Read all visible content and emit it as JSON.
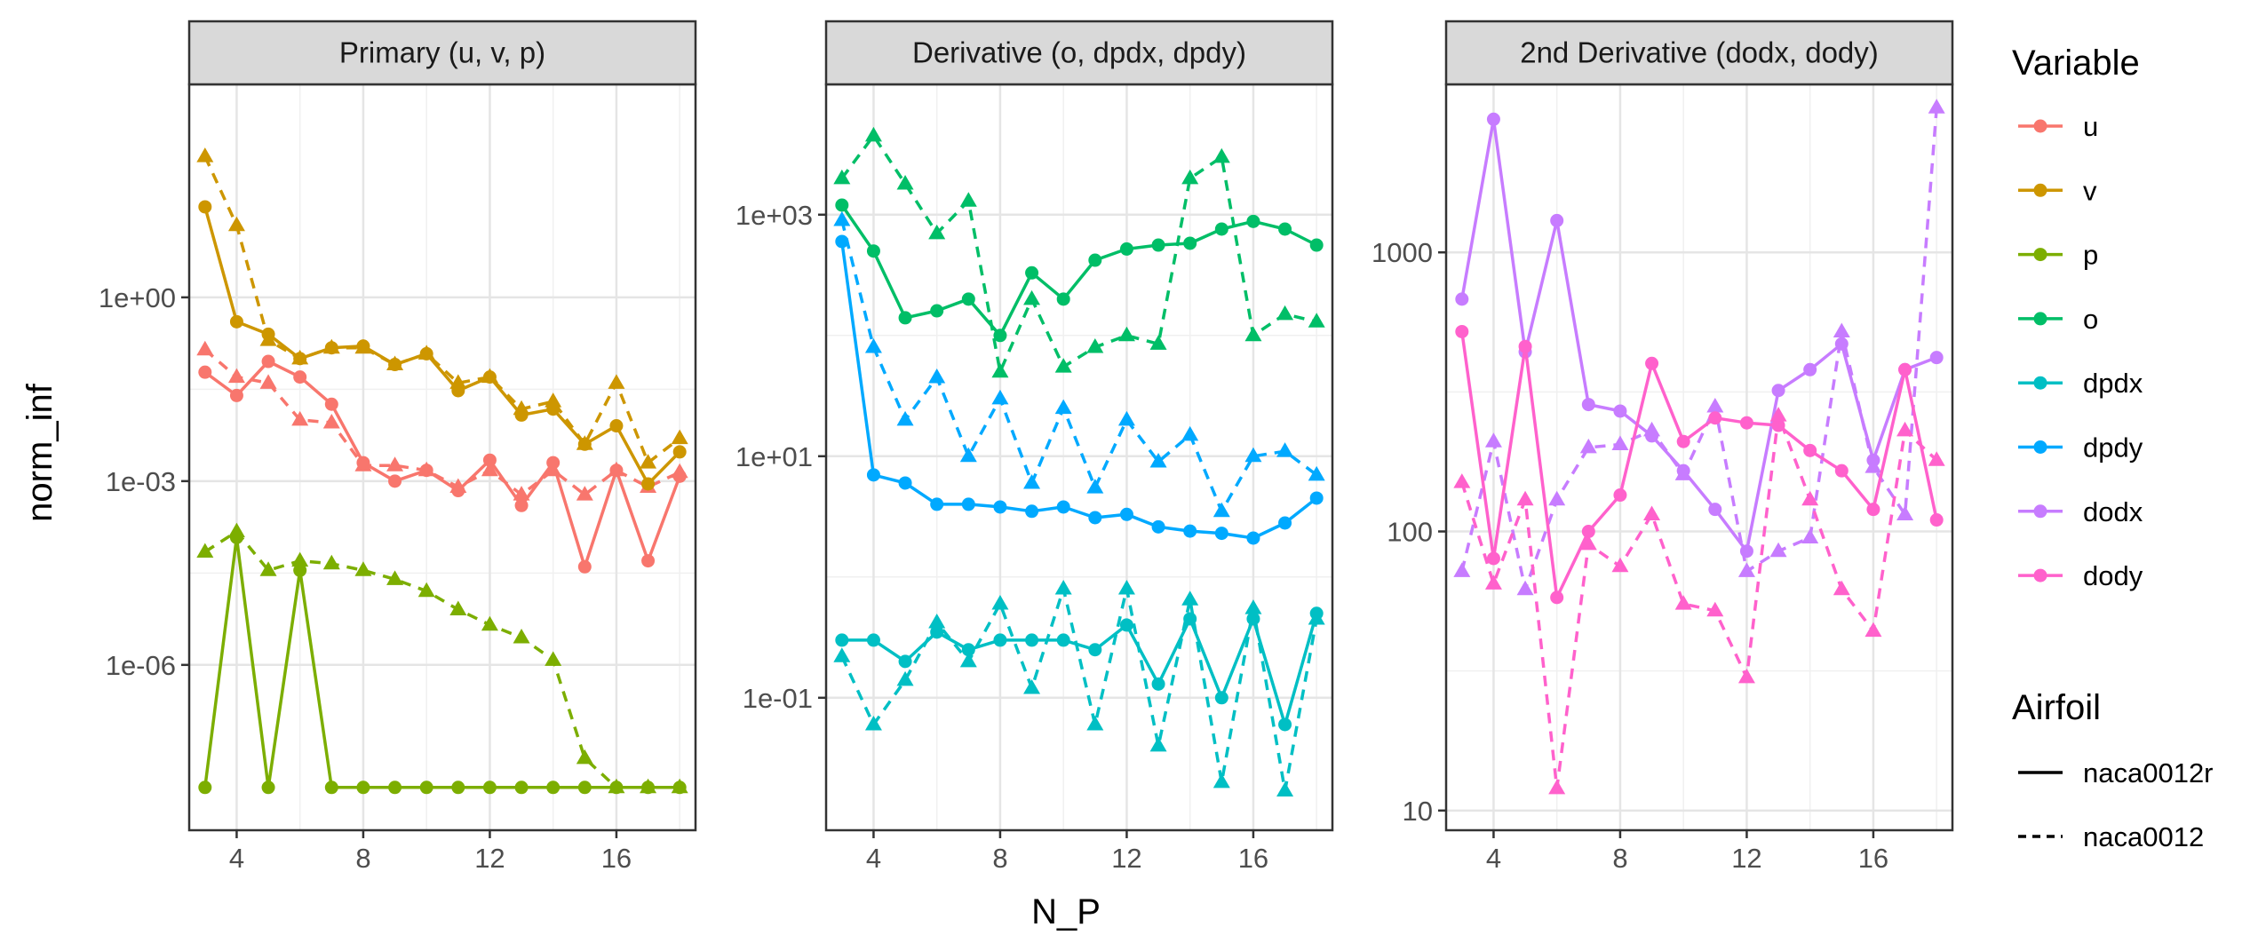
{
  "chart_data": {
    "type": "line",
    "x_label": "N_P",
    "y_label": "norm_inf",
    "x_ticks": [
      4,
      8,
      12,
      16
    ],
    "y_scale": "log10",
    "legend_variable_title": "Variable",
    "legend_airfoil_title": "Airfoil",
    "colors": {
      "u": "#F8766D",
      "v": "#CD9600",
      "p": "#7CAE00",
      "o": "#00BE67",
      "dpdx": "#00BFC4",
      "dpdy": "#00A9FF",
      "dodx": "#C77CFF",
      "dody": "#FF61CC"
    },
    "variables": [
      "u",
      "v",
      "p",
      "o",
      "dpdx",
      "dpdy",
      "dodx",
      "dody"
    ],
    "airfoils": [
      {
        "name": "naca0012r",
        "dash": "solid",
        "shape": "circle"
      },
      {
        "name": "naca0012",
        "dash": "dashed",
        "shape": "triangle"
      }
    ],
    "panels": [
      {
        "title": "Primary (u, v, p)",
        "xlim": [
          2.5,
          18.5
        ],
        "ylim": [
          2e-09,
          3000
        ],
        "y_tick_values": [
          1e-06,
          0.001,
          1
        ],
        "y_tick_labels": [
          "1e-06",
          "1e-03",
          "1e+00"
        ],
        "series": [
          {
            "variable": "u",
            "airfoil": "naca0012r",
            "x": [
              3,
              4,
              5,
              6,
              7,
              8,
              9,
              10,
              11,
              12,
              13,
              14,
              15,
              16,
              17,
              18
            ],
            "y": [
              0.06,
              0.025,
              0.09,
              0.05,
              0.018,
              0.002,
              0.001,
              0.0015,
              0.0007,
              0.0022,
              0.0004,
              0.002,
              4e-05,
              0.0015,
              5e-05,
              0.0012
            ]
          },
          {
            "variable": "u",
            "airfoil": "naca0012",
            "x": [
              3,
              4,
              5,
              6,
              7,
              8,
              9,
              10,
              11,
              12,
              13,
              14,
              15,
              16,
              17,
              18
            ],
            "y": [
              0.14,
              0.05,
              0.04,
              0.01,
              0.009,
              0.0018,
              0.0018,
              0.0015,
              0.0008,
              0.0015,
              0.0006,
              0.0015,
              0.0006,
              0.0015,
              0.0008,
              0.0014
            ]
          },
          {
            "variable": "v",
            "airfoil": "naca0012r",
            "x": [
              3,
              4,
              5,
              6,
              7,
              8,
              9,
              10,
              11,
              12,
              13,
              14,
              15,
              16,
              17,
              18
            ],
            "y": [
              30,
              0.4,
              0.25,
              0.1,
              0.15,
              0.16,
              0.08,
              0.12,
              0.03,
              0.05,
              0.012,
              0.015,
              0.004,
              0.008,
              0.0009,
              0.003
            ]
          },
          {
            "variable": "v",
            "airfoil": "naca0012",
            "x": [
              3,
              4,
              5,
              6,
              7,
              8,
              9,
              10,
              11,
              12,
              13,
              14,
              15,
              16,
              17,
              18
            ],
            "y": [
              200,
              15,
              0.2,
              0.1,
              0.15,
              0.15,
              0.08,
              0.12,
              0.04,
              0.05,
              0.015,
              0.02,
              0.004,
              0.04,
              0.002,
              0.005
            ]
          },
          {
            "variable": "p",
            "airfoil": "naca0012r",
            "x": [
              3,
              4,
              5,
              6,
              7,
              8,
              9,
              10,
              11,
              12,
              13,
              14,
              15,
              16,
              17,
              18
            ],
            "y": [
              1e-08,
              0.00012,
              1e-08,
              3.5e-05,
              1e-08,
              1e-08,
              1e-08,
              1e-08,
              1e-08,
              1e-08,
              1e-08,
              1e-08,
              1e-08,
              1e-08,
              1e-08,
              1e-08
            ]
          },
          {
            "variable": "p",
            "airfoil": "naca0012",
            "x": [
              3,
              4,
              5,
              6,
              7,
              8,
              9,
              10,
              11,
              12,
              13,
              14,
              15,
              16,
              17,
              18
            ],
            "y": [
              7e-05,
              0.00015,
              3.5e-05,
              5e-05,
              4.5e-05,
              3.5e-05,
              2.5e-05,
              1.6e-05,
              8e-06,
              4.5e-06,
              2.8e-06,
              1.2e-06,
              3e-08,
              1e-08,
              1e-08,
              1e-08
            ]
          }
        ]
      },
      {
        "title": "Derivative (o, dpdx, dpdy)",
        "xlim": [
          2.5,
          18.5
        ],
        "ylim": [
          0.008,
          12000
        ],
        "y_tick_values": [
          0.1,
          10,
          1000
        ],
        "y_tick_labels": [
          "1e-01",
          "1e+01",
          "1e+03"
        ],
        "series": [
          {
            "variable": "o",
            "airfoil": "naca0012r",
            "x": [
              3,
              4,
              5,
              6,
              7,
              8,
              9,
              10,
              11,
              12,
              13,
              14,
              15,
              16,
              17,
              18
            ],
            "y": [
              1200,
              500,
              140,
              160,
              200,
              100,
              330,
              200,
              420,
              520,
              560,
              580,
              760,
              880,
              760,
              560
            ]
          },
          {
            "variable": "o",
            "airfoil": "naca0012",
            "x": [
              3,
              4,
              5,
              6,
              7,
              8,
              9,
              10,
              11,
              12,
              13,
              14,
              15,
              16,
              17,
              18
            ],
            "y": [
              2000,
              4500,
              1800,
              700,
              1300,
              50,
              200,
              55,
              80,
              100,
              85,
              2000,
              3000,
              100,
              150,
              130
            ]
          },
          {
            "variable": "dpdx",
            "airfoil": "naca0012r",
            "x": [
              3,
              4,
              5,
              6,
              7,
              8,
              9,
              10,
              11,
              12,
              13,
              14,
              15,
              16,
              17,
              18
            ],
            "y": [
              0.3,
              0.3,
              0.2,
              0.35,
              0.25,
              0.3,
              0.3,
              0.3,
              0.25,
              0.4,
              0.13,
              0.45,
              0.1,
              0.45,
              0.06,
              0.5
            ]
          },
          {
            "variable": "dpdx",
            "airfoil": "naca0012",
            "x": [
              3,
              4,
              5,
              6,
              7,
              8,
              9,
              10,
              11,
              12,
              13,
              14,
              15,
              16,
              17,
              18
            ],
            "y": [
              0.22,
              0.06,
              0.14,
              0.42,
              0.2,
              0.6,
              0.12,
              0.8,
              0.06,
              0.8,
              0.04,
              0.65,
              0.02,
              0.55,
              0.017,
              0.45
            ]
          },
          {
            "variable": "dpdy",
            "airfoil": "naca0012r",
            "x": [
              3,
              4,
              5,
              6,
              7,
              8,
              9,
              10,
              11,
              12,
              13,
              14,
              15,
              16,
              17,
              18
            ],
            "y": [
              600,
              7,
              6,
              4,
              4,
              3.8,
              3.5,
              3.8,
              3.1,
              3.3,
              2.6,
              2.4,
              2.3,
              2.1,
              2.8,
              4.5
            ]
          },
          {
            "variable": "dpdy",
            "airfoil": "naca0012",
            "x": [
              3,
              4,
              5,
              6,
              7,
              8,
              9,
              10,
              11,
              12,
              13,
              14,
              15,
              16,
              17,
              18
            ],
            "y": [
              900,
              80,
              20,
              45,
              10,
              30,
              6,
              25,
              5.5,
              20,
              9,
              15,
              3.5,
              10,
              11,
              7
            ]
          }
        ]
      },
      {
        "title": "2nd Derivative (dodx, dody)",
        "xlim": [
          2.5,
          18.5
        ],
        "ylim": [
          8.5,
          4000
        ],
        "y_tick_values": [
          10,
          100,
          1000
        ],
        "y_tick_labels": [
          "10",
          "100",
          "1000"
        ],
        "series": [
          {
            "variable": "dodx",
            "airfoil": "naca0012r",
            "x": [
              3,
              4,
              5,
              6,
              7,
              8,
              9,
              10,
              11,
              12,
              13,
              14,
              15,
              16,
              17,
              18
            ],
            "y": [
              680,
              3000,
              440,
              1300,
              285,
              270,
              220,
              165,
              120,
              85,
              320,
              380,
              470,
              180,
              380,
              420
            ]
          },
          {
            "variable": "dodx",
            "airfoil": "naca0012",
            "x": [
              3,
              4,
              5,
              6,
              7,
              8,
              9,
              10,
              11,
              12,
              13,
              14,
              15,
              16,
              17,
              18
            ],
            "y": [
              72,
              210,
              62,
              130,
              200,
              205,
              230,
              160,
              280,
              72,
              85,
              95,
              520,
              170,
              115,
              3300
            ]
          },
          {
            "variable": "dody",
            "airfoil": "naca0012r",
            "x": [
              3,
              4,
              5,
              6,
              7,
              8,
              9,
              10,
              11,
              12,
              13,
              14,
              15,
              16,
              17,
              18
            ],
            "y": [
              520,
              80,
              460,
              58,
              100,
              135,
              400,
              210,
              255,
              245,
              240,
              195,
              165,
              120,
              380,
              110
            ]
          },
          {
            "variable": "dody",
            "airfoil": "naca0012",
            "x": [
              3,
              4,
              5,
              6,
              7,
              8,
              9,
              10,
              11,
              12,
              13,
              14,
              15,
              16,
              17,
              18
            ],
            "y": [
              150,
              65,
              130,
              12,
              90,
              75,
              115,
              55,
              52,
              30,
              260,
              130,
              62,
              44,
              230,
              180
            ]
          }
        ]
      }
    ]
  }
}
